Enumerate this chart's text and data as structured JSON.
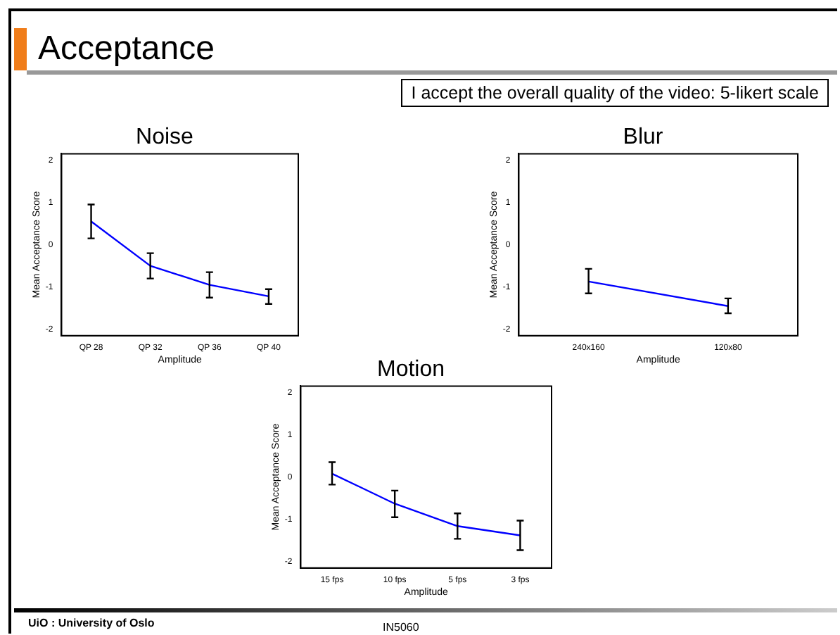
{
  "chart_data": [
    {
      "type": "other",
      "title": "Acceptance",
      "subtitle": "I accept the overall quality of the video: 5-likert scale",
      "annotations": [
        "UiO : University of Oslo",
        "IN5060"
      ]
    },
    {
      "type": "line",
      "title": "Noise",
      "xlabel": "Amplitude",
      "ylabel": "Mean Acceptance Score",
      "categories": [
        "QP 28",
        "QP 32",
        "QP 36",
        "QP 40"
      ],
      "series": [
        {
          "color": "#0000ff",
          "values": [
            0.55,
            -0.5,
            -0.95,
            -1.22
          ],
          "errors": [
            [
              0.15,
              0.95
            ],
            [
              -0.8,
              -0.2
            ],
            [
              -1.25,
              -0.65
            ],
            [
              -1.4,
              -1.05
            ]
          ]
        }
      ],
      "ylim": [
        -2.15,
        2.15
      ],
      "yticks": [
        -2,
        -1,
        0,
        1,
        2
      ],
      "grid": false,
      "legend": false,
      "marker": "none",
      "line_style": "solid"
    },
    {
      "type": "line",
      "title": "Blur",
      "xlabel": "Amplitude",
      "ylabel": "Mean Acceptance Score",
      "categories": [
        "240x160",
        "120x80"
      ],
      "series": [
        {
          "color": "#0000ff",
          "values": [
            -0.87,
            -1.45
          ],
          "errors": [
            [
              -1.15,
              -0.57
            ],
            [
              -1.62,
              -1.27
            ]
          ]
        }
      ],
      "ylim": [
        -2.15,
        2.15
      ],
      "yticks": [
        -2,
        -1,
        0,
        1,
        2
      ],
      "grid": false,
      "legend": false,
      "marker": "none",
      "line_style": "solid"
    },
    {
      "type": "line",
      "title": "Motion",
      "xlabel": "Amplitude",
      "ylabel": "Mean Acceptance Score",
      "categories": [
        "15 fps",
        "10 fps",
        "5 fps",
        "3 fps"
      ],
      "series": [
        {
          "color": "#0000ff",
          "values": [
            0.08,
            -0.63,
            -1.16,
            -1.38
          ],
          "errors": [
            [
              -0.18,
              0.35
            ],
            [
              -0.95,
              -0.32
            ],
            [
              -1.46,
              -0.86
            ],
            [
              -1.73,
              -1.03
            ]
          ]
        }
      ],
      "ylim": [
        -2.15,
        2.15
      ],
      "yticks": [
        -2,
        -1,
        0,
        1,
        2
      ],
      "grid": false,
      "legend": false,
      "marker": "none",
      "line_style": "solid"
    }
  ]
}
